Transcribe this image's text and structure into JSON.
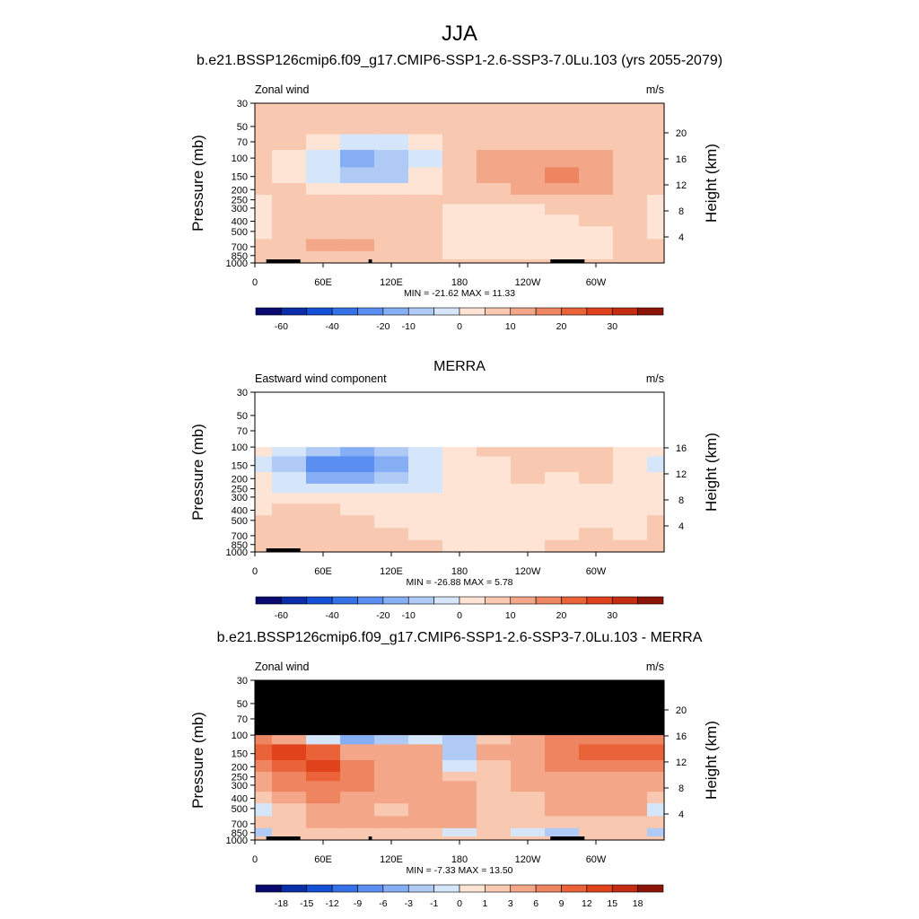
{
  "figure": {
    "season": "JJA"
  },
  "palettes": {
    "full": [
      "#08086e",
      "#0a2da8",
      "#1450d6",
      "#3572e8",
      "#5a8ef0",
      "#86aef4",
      "#b0caf6",
      "#d6e6fa",
      "#fde4d4",
      "#f8c8b0",
      "#f4a688",
      "#ef8460",
      "#ea6238",
      "#e0431c",
      "#c42c12",
      "#8c1408"
    ],
    "diff": [
      "#08086e",
      "#0a2da8",
      "#1450d6",
      "#3572e8",
      "#5a8ef0",
      "#86aef4",
      "#b0caf6",
      "#d6e6fa",
      "#fde4d4",
      "#f8c8b0",
      "#f4a688",
      "#ef8460",
      "#ea6238",
      "#e0431c",
      "#c42c12",
      "#8c1408"
    ]
  },
  "chart_data": [
    {
      "type": "heatmap",
      "title": "b.e21.BSSP126cmip6.f09_g17.CMIP6-SSP1-2.6-SSP3-7.0Lu.103 (yrs 2055-2079)",
      "left_label": "Zonal wind",
      "units": "m/s",
      "ylabel": "Pressure (mb)",
      "ylabel_right": "Height (km)",
      "x_ticks": [
        "0",
        "60E",
        "120E",
        "180",
        "120W",
        "60W"
      ],
      "x_tick_values": [
        0,
        60,
        120,
        180,
        240,
        300
      ],
      "xlim": [
        0,
        360
      ],
      "y_ticks": [
        "30",
        "50",
        "70",
        "100",
        "150",
        "200",
        "250",
        "300",
        "400",
        "500",
        "700",
        "850",
        "1000"
      ],
      "y_tick_values": [
        30,
        50,
        70,
        100,
        150,
        200,
        250,
        300,
        400,
        500,
        700,
        850,
        1000
      ],
      "ylim": [
        1000,
        30
      ],
      "right_ticks": [
        "4",
        "8",
        "12",
        "16",
        "20"
      ],
      "right_tick_values": [
        4,
        8,
        12,
        16,
        20
      ],
      "stats": "MIN = -21.62  MAX =  11.33",
      "colorbar_labels": [
        "-60",
        "-40",
        "-20",
        "-10",
        "0",
        "10",
        "20",
        "30"
      ],
      "colorbar_label_slots": [
        1,
        3,
        5,
        6,
        8,
        10,
        12,
        14
      ],
      "palette": "full",
      "levels": [
        -70,
        -60,
        -50,
        -40,
        -30,
        -20,
        -15,
        -10,
        -5,
        0,
        5,
        10,
        15,
        20,
        25,
        30
      ],
      "missing_above": 0,
      "cells": {
        "lons": [
          0,
          30,
          60,
          90,
          120,
          150,
          180,
          210,
          240,
          270,
          300,
          330,
          360
        ],
        "press": [
          30,
          50,
          70,
          100,
          150,
          200,
          250,
          300,
          400,
          500,
          700,
          850,
          1000
        ],
        "values": [
          [
            1,
            1,
            1,
            1,
            1,
            1,
            1,
            1,
            1,
            1,
            1,
            1,
            1
          ],
          [
            1,
            1,
            1,
            0,
            0,
            1,
            1,
            1,
            1,
            1,
            1,
            1,
            1
          ],
          [
            2,
            2,
            -4,
            -8,
            -6,
            -3,
            1,
            3,
            4,
            4,
            3,
            1,
            2
          ],
          [
            4,
            -2,
            -10,
            -20,
            -14,
            -6,
            2,
            6,
            8,
            8,
            7,
            3,
            4
          ],
          [
            3,
            -1,
            -8,
            -15,
            -12,
            -4,
            2,
            6,
            9,
            10,
            8,
            2,
            3
          ],
          [
            1,
            2,
            -2,
            -5,
            -4,
            -1,
            2,
            4,
            6,
            7,
            6,
            1,
            1
          ],
          [
            -1,
            3,
            2,
            1,
            0,
            1,
            2,
            3,
            3,
            2,
            1,
            1,
            -1
          ],
          [
            -2,
            4,
            3,
            2,
            1,
            1,
            -1,
            -2,
            -1,
            1,
            1,
            1,
            -2
          ],
          [
            -2,
            4,
            4,
            2,
            2,
            1,
            -2,
            -3,
            -2,
            -1,
            1,
            1,
            -2
          ],
          [
            -1,
            3,
            3,
            2,
            2,
            1,
            -2,
            -3,
            -3,
            -2,
            -1,
            1,
            -1
          ],
          [
            1,
            2,
            5,
            5,
            2,
            1,
            -1,
            -2,
            -3,
            -3,
            -2,
            1,
            1
          ],
          [
            1,
            2,
            4,
            4,
            1,
            1,
            -1,
            -1,
            -2,
            -2,
            -1,
            1,
            1
          ],
          [
            1,
            1,
            1,
            1,
            1,
            1,
            1,
            1,
            1,
            1,
            1,
            1,
            1
          ]
        ]
      },
      "topography": [
        [
          10,
          30
        ],
        [
          30,
          40
        ],
        [
          100,
          103
        ],
        [
          260,
          290
        ]
      ]
    },
    {
      "type": "heatmap",
      "title": "MERRA",
      "left_label": "Eastward wind component",
      "units": "m/s",
      "ylabel": "Pressure (mb)",
      "ylabel_right": "Height (km)",
      "x_ticks": [
        "0",
        "60E",
        "120E",
        "180",
        "120W",
        "60W"
      ],
      "x_tick_values": [
        0,
        60,
        120,
        180,
        240,
        300
      ],
      "xlim": [
        0,
        360
      ],
      "y_ticks": [
        "30",
        "50",
        "70",
        "100",
        "150",
        "200",
        "250",
        "300",
        "400",
        "500",
        "700",
        "850",
        "1000"
      ],
      "y_tick_values": [
        30,
        50,
        70,
        100,
        150,
        200,
        250,
        300,
        400,
        500,
        700,
        850,
        1000
      ],
      "ylim": [
        1000,
        30
      ],
      "right_ticks": [
        "4",
        "8",
        "12",
        "16"
      ],
      "right_tick_values": [
        4,
        8,
        12,
        16
      ],
      "stats": "MIN = -26.88  MAX =   5.78",
      "colorbar_labels": [
        "-60",
        "-40",
        "-20",
        "-10",
        "0",
        "10",
        "20",
        "30"
      ],
      "colorbar_label_slots": [
        1,
        3,
        5,
        6,
        8,
        10,
        12,
        14
      ],
      "palette": "full",
      "levels": [
        -70,
        -60,
        -50,
        -40,
        -30,
        -20,
        -15,
        -10,
        -5,
        0,
        5,
        10,
        15,
        20,
        25,
        30
      ],
      "missing_above": 100,
      "missing_color": "#ffffff",
      "cells": {
        "lons": [
          0,
          30,
          60,
          90,
          120,
          150,
          180,
          210,
          240,
          270,
          300,
          330,
          360
        ],
        "press": [
          100,
          150,
          200,
          250,
          300,
          400,
          500,
          700,
          850,
          1000
        ],
        "values": [
          [
            -4,
            -8,
            -14,
            -18,
            -12,
            -6,
            -2,
            1,
            2,
            1,
            1,
            -3,
            -4
          ],
          [
            -6,
            -14,
            -24,
            -26,
            -16,
            -8,
            -3,
            -1,
            3,
            1,
            3,
            -4,
            -6
          ],
          [
            -4,
            -10,
            -16,
            -16,
            -12,
            -8,
            -4,
            -2,
            1,
            -1,
            1,
            -3,
            -4
          ],
          [
            -3,
            -6,
            -10,
            -10,
            -8,
            -6,
            -4,
            -3,
            -2,
            -2,
            -1,
            -2,
            -3
          ],
          [
            -2,
            -3,
            -4,
            -5,
            -5,
            -4,
            -4,
            -3,
            -3,
            -3,
            -2,
            -2,
            -2
          ],
          [
            -1,
            1,
            1,
            -1,
            -2,
            -3,
            -3,
            -3,
            -3,
            -3,
            -2,
            -2,
            -1
          ],
          [
            1,
            3,
            2,
            1,
            -1,
            -2,
            -3,
            -3,
            -3,
            -3,
            -2,
            -2,
            1
          ],
          [
            2,
            3,
            4,
            2,
            1,
            -1,
            -2,
            -3,
            -2,
            -1,
            1,
            -1,
            2
          ],
          [
            1,
            2,
            3,
            1,
            1,
            1,
            -1,
            -1,
            -1,
            1,
            1,
            1,
            1
          ],
          [
            1,
            1,
            1,
            1,
            1,
            1,
            -1,
            -1,
            -1,
            1,
            1,
            1,
            1
          ]
        ]
      },
      "topography": [
        [
          10,
          40
        ]
      ]
    },
    {
      "type": "heatmap",
      "title": "b.e21.BSSP126cmip6.f09_g17.CMIP6-SSP1-2.6-SSP3-7.0Lu.103 - MERRA",
      "left_label": "Zonal wind",
      "units": "m/s",
      "ylabel": "Pressure (mb)",
      "ylabel_right": "Height (km)",
      "x_ticks": [
        "0",
        "60E",
        "120E",
        "180",
        "120W",
        "60W"
      ],
      "x_tick_values": [
        0,
        60,
        120,
        180,
        240,
        300
      ],
      "xlim": [
        0,
        360
      ],
      "y_ticks": [
        "30",
        "50",
        "70",
        "100",
        "150",
        "200",
        "250",
        "300",
        "400",
        "500",
        "700",
        "850",
        "1000"
      ],
      "y_tick_values": [
        30,
        50,
        70,
        100,
        150,
        200,
        250,
        300,
        400,
        500,
        700,
        850,
        1000
      ],
      "ylim": [
        1000,
        30
      ],
      "right_ticks": [
        "4",
        "8",
        "12",
        "16",
        "20"
      ],
      "right_tick_values": [
        4,
        8,
        12,
        16,
        20
      ],
      "stats": "MIN =  -7.33  MAX =  13.50",
      "colorbar_labels": [
        "-18",
        "-15",
        "-12",
        "-9",
        "-6",
        "-3",
        "-1",
        "0",
        "1",
        "3",
        "6",
        "9",
        "12",
        "15",
        "18"
      ],
      "colorbar_label_slots": [
        1,
        2,
        3,
        4,
        5,
        6,
        7,
        8,
        9,
        10,
        11,
        12,
        13,
        14,
        15
      ],
      "palette": "diff",
      "levels": [
        -21,
        -18,
        -15,
        -12,
        -9,
        -6,
        -3,
        -1,
        0,
        1,
        3,
        6,
        9,
        12,
        15,
        18
      ],
      "missing_above": 100,
      "missing_color": "#000000",
      "cells": {
        "lons": [
          0,
          30,
          60,
          90,
          120,
          150,
          180,
          210,
          240,
          270,
          300,
          330,
          360
        ],
        "press": [
          100,
          150,
          200,
          250,
          300,
          400,
          500,
          700,
          850,
          1000
        ],
        "values": [
          [
            6,
            3,
            -1,
            -4,
            -2,
            -1,
            -3,
            2,
            3,
            6,
            8,
            8,
            7
          ],
          [
            10,
            12,
            10,
            5,
            4,
            3,
            -2,
            3,
            5,
            8,
            9,
            9,
            9
          ],
          [
            7,
            10,
            12,
            8,
            5,
            3,
            -1,
            2,
            4,
            6,
            6,
            6,
            6
          ],
          [
            5,
            8,
            11,
            7,
            5,
            4,
            2,
            2,
            3,
            5,
            5,
            5,
            5
          ],
          [
            4,
            6,
            8,
            6,
            4,
            4,
            3,
            2,
            3,
            4,
            4,
            4,
            4
          ],
          [
            2,
            4,
            6,
            5,
            3,
            3,
            3,
            2,
            2,
            3,
            3,
            3,
            2
          ],
          [
            -1,
            2,
            3,
            3,
            2,
            3,
            3,
            1,
            2,
            3,
            3,
            3,
            -1
          ],
          [
            1,
            1,
            3,
            3,
            4,
            5,
            3,
            1,
            1,
            1,
            2,
            2,
            1
          ],
          [
            -2,
            1,
            1,
            1,
            1,
            1,
            -1,
            1,
            -1,
            -3,
            1,
            1,
            -2
          ],
          [
            1,
            1,
            1,
            1,
            1,
            1,
            1,
            1,
            1,
            1,
            1,
            1,
            1
          ]
        ]
      },
      "topography": [
        [
          10,
          30
        ],
        [
          30,
          40
        ],
        [
          100,
          103
        ],
        [
          260,
          290
        ]
      ]
    }
  ]
}
